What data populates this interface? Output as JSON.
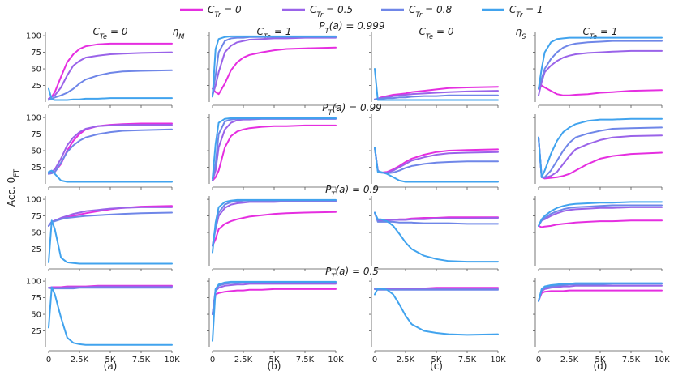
{
  "legend": {
    "entries": [
      "C_Tr = 0",
      "C_Tr = 0.5",
      "C_Tr = 0.8",
      "C_Tr = 1"
    ],
    "colors": [
      "#e52ee0",
      "#9a63e9",
      "#6f86e8",
      "#41a3ee"
    ]
  },
  "ylabel": "Acc. 0_FT",
  "group_labels": [
    "η_M",
    "η_S"
  ],
  "column_titles": [
    "C_Te = 0",
    "C_Te = 1",
    "C_Te = 0",
    "C_Te = 1"
  ],
  "panel_labels": [
    "(a)",
    "(b)",
    "(c)",
    "(d)"
  ],
  "row_titles": [
    "P_T(a) = 0.999",
    "P_T(a) = 0.99",
    "P_T(a) = 0.9",
    "P_T(a) = 0.5"
  ],
  "x_ticks": [
    "0",
    "2.5K",
    "5K",
    "7.5K",
    "10K"
  ],
  "y_ticks": [
    "25",
    "50",
    "75",
    "100"
  ],
  "chart_data": {
    "type": "line",
    "x": [
      0,
      250,
      500,
      1000,
      1500,
      2000,
      2500,
      3000,
      4000,
      5000,
      6000,
      7500,
      10000
    ],
    "xlim": [
      0,
      10000
    ],
    "ylim": [
      0,
      105
    ],
    "series_names": [
      "C_Tr = 0",
      "C_Tr = 0.5",
      "C_Tr = 0.8",
      "C_Tr = 1"
    ],
    "rows": [
      [
        [
          [
            5,
            8,
            15,
            38,
            60,
            72,
            80,
            84,
            87,
            88,
            88,
            88,
            88
          ],
          [
            5,
            8,
            10,
            22,
            40,
            55,
            62,
            67,
            70,
            72,
            73,
            74,
            75
          ],
          [
            3,
            5,
            7,
            10,
            14,
            20,
            28,
            34,
            40,
            44,
            46,
            47,
            48
          ],
          [
            20,
            4,
            3,
            3,
            3,
            4,
            4,
            5,
            5,
            6,
            6,
            6,
            6
          ]
        ],
        [
          [
            20,
            15,
            12,
            28,
            48,
            60,
            67,
            71,
            75,
            78,
            80,
            81,
            82
          ],
          [
            10,
            25,
            45,
            75,
            85,
            90,
            92,
            94,
            95,
            96,
            96,
            97,
            97
          ],
          [
            12,
            40,
            75,
            92,
            96,
            97,
            97,
            98,
            98,
            98,
            98,
            98,
            98
          ],
          [
            8,
            80,
            95,
            98,
            99,
            99,
            99,
            99,
            99,
            99,
            99,
            99,
            99
          ]
        ],
        [
          [
            4,
            5,
            7,
            9,
            11,
            12,
            13,
            15,
            17,
            19,
            21,
            22,
            23
          ],
          [
            4,
            5,
            6,
            7,
            9,
            10,
            11,
            12,
            13,
            14,
            15,
            16,
            17
          ],
          [
            4,
            4,
            5,
            6,
            6,
            7,
            7,
            8,
            9,
            9,
            10,
            10,
            10
          ],
          [
            50,
            3,
            3,
            3,
            3,
            3,
            3,
            3,
            3,
            3,
            3,
            3,
            3
          ]
        ],
        [
          [
            20,
            25,
            22,
            17,
            12,
            10,
            10,
            11,
            12,
            14,
            15,
            17,
            18
          ],
          [
            10,
            30,
            45,
            55,
            62,
            67,
            70,
            72,
            74,
            75,
            76,
            77,
            77
          ],
          [
            20,
            35,
            50,
            65,
            75,
            82,
            86,
            88,
            90,
            91,
            92,
            92,
            92
          ],
          [
            20,
            50,
            75,
            90,
            95,
            96,
            97,
            97,
            97,
            97,
            97,
            97,
            97
          ]
        ]
      ],
      [
        [
          [
            15,
            16,
            18,
            30,
            50,
            65,
            75,
            82,
            87,
            89,
            90,
            91,
            91
          ],
          [
            16,
            18,
            22,
            38,
            58,
            70,
            78,
            83,
            87,
            88,
            89,
            89,
            89
          ],
          [
            15,
            16,
            18,
            32,
            48,
            58,
            65,
            70,
            75,
            78,
            80,
            81,
            82
          ],
          [
            18,
            20,
            15,
            5,
            3,
            3,
            3,
            3,
            3,
            3,
            3,
            3,
            3
          ]
        ],
        [
          [
            5,
            10,
            20,
            55,
            72,
            79,
            82,
            84,
            86,
            87,
            87,
            88,
            88
          ],
          [
            5,
            20,
            55,
            82,
            92,
            96,
            97,
            97,
            98,
            98,
            98,
            98,
            98
          ],
          [
            5,
            30,
            75,
            94,
            97,
            98,
            98,
            98,
            98,
            98,
            98,
            98,
            98
          ],
          [
            8,
            60,
            92,
            98,
            99,
            99,
            99,
            99,
            99,
            99,
            99,
            99,
            99
          ]
        ],
        [
          [
            55,
            20,
            17,
            18,
            22,
            27,
            33,
            38,
            44,
            48,
            50,
            51,
            52
          ],
          [
            55,
            20,
            17,
            17,
            20,
            25,
            30,
            35,
            40,
            44,
            46,
            47,
            48
          ],
          [
            55,
            20,
            17,
            16,
            17,
            20,
            24,
            27,
            30,
            32,
            33,
            34,
            34
          ],
          [
            55,
            18,
            18,
            15,
            10,
            5,
            3,
            3,
            3,
            3,
            3,
            3,
            3
          ]
        ],
        [
          [
            70,
            10,
            8,
            9,
            10,
            12,
            15,
            20,
            30,
            38,
            42,
            45,
            47
          ],
          [
            70,
            10,
            9,
            12,
            18,
            30,
            42,
            52,
            60,
            66,
            70,
            72,
            73
          ],
          [
            70,
            10,
            10,
            20,
            35,
            50,
            62,
            70,
            76,
            80,
            83,
            84,
            85
          ],
          [
            70,
            10,
            20,
            45,
            65,
            78,
            85,
            90,
            95,
            97,
            97,
            98,
            98
          ]
        ]
      ],
      [
        [
          [
            60,
            66,
            68,
            71,
            73,
            75,
            77,
            79,
            82,
            85,
            87,
            89,
            90
          ],
          [
            60,
            66,
            68,
            72,
            75,
            78,
            80,
            82,
            84,
            86,
            87,
            88,
            88
          ],
          [
            60,
            66,
            67,
            70,
            72,
            73,
            74,
            75,
            76,
            77,
            78,
            79,
            80
          ],
          [
            5,
            68,
            55,
            12,
            5,
            4,
            3,
            3,
            3,
            3,
            3,
            3,
            3
          ]
        ],
        [
          [
            30,
            40,
            55,
            63,
            67,
            70,
            72,
            74,
            76,
            78,
            79,
            80,
            81
          ],
          [
            30,
            55,
            75,
            87,
            92,
            94,
            95,
            96,
            96,
            96,
            97,
            97,
            97
          ],
          [
            30,
            60,
            80,
            92,
            96,
            97,
            98,
            98,
            98,
            98,
            98,
            98,
            98
          ],
          [
            20,
            65,
            88,
            96,
            98,
            99,
            99,
            99,
            99,
            99,
            99,
            99,
            99
          ]
        ],
        [
          [
            80,
            68,
            68,
            69,
            69,
            70,
            70,
            71,
            72,
            72,
            73,
            73,
            73
          ],
          [
            80,
            68,
            68,
            68,
            69,
            69,
            69,
            70,
            70,
            71,
            71,
            71,
            72
          ],
          [
            80,
            66,
            66,
            66,
            66,
            65,
            65,
            65,
            64,
            64,
            64,
            63,
            63
          ],
          [
            80,
            70,
            70,
            67,
            60,
            48,
            35,
            25,
            15,
            10,
            7,
            6,
            6
          ]
        ],
        [
          [
            60,
            58,
            59,
            60,
            62,
            63,
            64,
            65,
            66,
            67,
            67,
            68,
            68
          ],
          [
            60,
            68,
            70,
            75,
            79,
            82,
            84,
            85,
            86,
            87,
            87,
            88,
            88
          ],
          [
            60,
            68,
            72,
            78,
            82,
            85,
            87,
            88,
            89,
            90,
            91,
            91,
            91
          ],
          [
            60,
            70,
            75,
            82,
            87,
            90,
            92,
            93,
            94,
            95,
            95,
            96,
            96
          ]
        ]
      ],
      [
        [
          [
            90,
            91,
            91,
            91,
            92,
            92,
            92,
            92,
            93,
            93,
            93,
            93,
            93
          ],
          [
            90,
            90,
            90,
            90,
            91,
            91,
            91,
            91,
            92,
            92,
            92,
            92,
            92
          ],
          [
            90,
            89,
            89,
            89,
            89,
            89,
            90,
            90,
            90,
            90,
            90,
            90,
            90
          ],
          [
            30,
            91,
            80,
            45,
            15,
            7,
            5,
            4,
            4,
            4,
            4,
            4,
            4
          ]
        ],
        [
          [
            50,
            80,
            82,
            84,
            85,
            86,
            86,
            87,
            87,
            88,
            88,
            88,
            88
          ],
          [
            50,
            85,
            90,
            93,
            94,
            95,
            95,
            96,
            96,
            96,
            96,
            96,
            96
          ],
          [
            50,
            88,
            93,
            96,
            97,
            97,
            98,
            98,
            98,
            98,
            98,
            98,
            98
          ],
          [
            10,
            88,
            95,
            98,
            99,
            99,
            99,
            99,
            99,
            99,
            99,
            99,
            99
          ]
        ],
        [
          [
            88,
            88,
            88,
            89,
            89,
            89,
            89,
            89,
            89,
            90,
            90,
            90,
            90
          ],
          [
            88,
            88,
            88,
            88,
            88,
            88,
            88,
            88,
            88,
            88,
            89,
            89,
            89
          ],
          [
            88,
            87,
            87,
            87,
            87,
            87,
            87,
            87,
            87,
            87,
            87,
            87,
            87
          ],
          [
            80,
            89,
            89,
            87,
            80,
            65,
            48,
            35,
            25,
            22,
            20,
            19,
            20
          ]
        ],
        [
          [
            70,
            82,
            84,
            85,
            85,
            85,
            86,
            86,
            86,
            86,
            86,
            86,
            86
          ],
          [
            70,
            85,
            88,
            90,
            91,
            92,
            92,
            93,
            93,
            93,
            93,
            93,
            93
          ],
          [
            70,
            87,
            90,
            92,
            93,
            94,
            95,
            95,
            95,
            95,
            96,
            96,
            96
          ],
          [
            70,
            88,
            92,
            94,
            95,
            96,
            96,
            97,
            97,
            97,
            97,
            97,
            97
          ]
        ]
      ]
    ]
  }
}
